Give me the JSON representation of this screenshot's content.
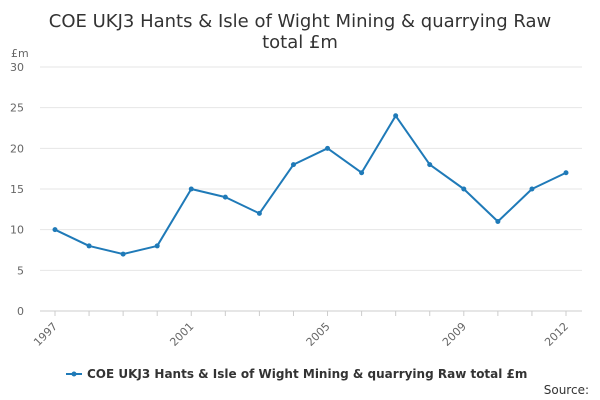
{
  "chart_data": {
    "type": "line",
    "title_lines": [
      "COE UKJ3 Hants & Isle of Wight Mining & quarrying Raw",
      "total £m"
    ],
    "y_unit": "£m",
    "x": [
      1997,
      1998,
      1999,
      2000,
      2001,
      2002,
      2003,
      2004,
      2005,
      2006,
      2007,
      2008,
      2009,
      2010,
      2011,
      2012
    ],
    "x_tick_labels": [
      "1997",
      "2001",
      "2005",
      "2009",
      "2012"
    ],
    "series": [
      {
        "name": "COE UKJ3 Hants & Isle of Wight Mining & quarrying Raw total £m",
        "values": [
          10,
          8,
          7,
          8,
          15,
          14,
          12,
          18,
          20,
          17,
          24,
          18,
          15,
          11,
          15,
          17
        ]
      }
    ],
    "ylim": [
      0,
      30
    ],
    "y_ticks": [
      0,
      5,
      10,
      15,
      20,
      25,
      30
    ],
    "grid": true,
    "legend_position": "bottom",
    "line_color": "#1f7ab8"
  },
  "source_label": "Source:"
}
